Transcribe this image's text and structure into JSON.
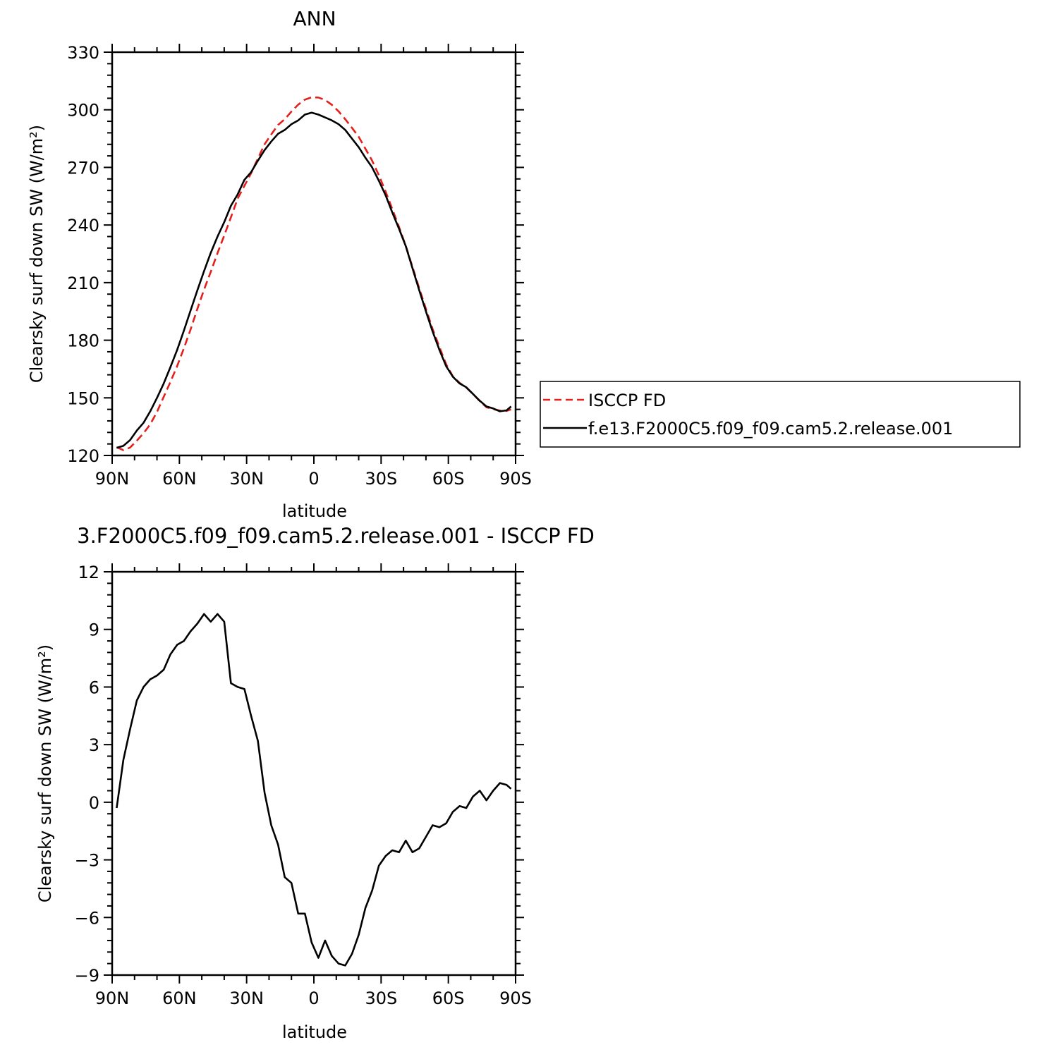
{
  "chart_data": [
    {
      "type": "line",
      "title": "ANN",
      "xlabel": "latitude",
      "ylabel": "Clearsky surf down SW (W/m²)",
      "xlim": [
        -90,
        90
      ],
      "ylim": [
        120,
        330
      ],
      "x_ticks": [
        -90,
        -60,
        -30,
        0,
        30,
        60,
        90
      ],
      "x_tick_labels": [
        "90N",
        "60N",
        "30N",
        "0",
        "30S",
        "60S",
        "90S"
      ],
      "y_ticks": [
        120,
        150,
        180,
        210,
        240,
        270,
        300,
        330
      ],
      "y_tick_labels": [
        "120",
        "150",
        "180",
        "210",
        "240",
        "270",
        "300",
        "330"
      ],
      "grid": false,
      "legend_position": "right",
      "x": [
        -88,
        -85,
        -82,
        -79,
        -76,
        -73,
        -70,
        -67,
        -64,
        -61,
        -58,
        -55,
        -52,
        -49,
        -46,
        -43,
        -40,
        -37,
        -34,
        -31,
        -28,
        -25,
        -22,
        -19,
        -16,
        -13,
        -10,
        -7,
        -4,
        -1,
        2,
        5,
        8,
        11,
        14,
        17,
        20,
        23,
        26,
        29,
        32,
        35,
        38,
        41,
        44,
        47,
        50,
        53,
        56,
        59,
        62,
        65,
        68,
        71,
        74,
        77,
        80,
        83,
        86,
        88
      ],
      "series": [
        {
          "name": "ISCCP FD",
          "color": "#e3201c",
          "dash": true,
          "values": [
            124.3,
            122.8,
            124.1,
            127.7,
            131.6,
            136.2,
            142.7,
            150.5,
            158.3,
            166.6,
            175.8,
            185.6,
            196.3,
            206.4,
            215.6,
            225.4,
            234.5,
            244.0,
            253.8,
            260.4,
            267.0,
            274.6,
            282.0,
            287.2,
            292.1,
            295.1,
            299.1,
            302.7,
            305.3,
            306.5,
            306.4,
            305.1,
            302.6,
            299.2,
            295.1,
            290.6,
            285.9,
            279.7,
            273.5,
            265.9,
            257.4,
            248.3,
            238.9,
            229.1,
            218.2,
            207.0,
            196.3,
            185.8,
            176.5,
            167.5,
            161.2,
            157.8,
            155.3,
            152.0,
            148.3,
            145.1,
            144.1,
            143.4,
            143.2,
            144.0
          ]
        },
        {
          "name": "f.e13.F2000C5.f09_f09.cam5.2.release.001",
          "color": "#000000",
          "dash": false,
          "values": [
            124.0,
            125.0,
            128.0,
            133.0,
            137.0,
            143.0,
            150.0,
            157.5,
            166.0,
            175.0,
            185.0,
            195.5,
            206.0,
            216.0,
            225.5,
            234.0,
            241.5,
            250.0,
            256.0,
            263.5,
            267.5,
            273.5,
            279.0,
            283.5,
            287.5,
            289.5,
            292.5,
            294.5,
            297.5,
            298.5,
            297.5,
            296.0,
            294.5,
            292.5,
            289.5,
            285.0,
            280.5,
            275.0,
            270.0,
            263.0,
            255.5,
            246.5,
            238.0,
            229.0,
            217.5,
            206.0,
            195.0,
            184.5,
            175.0,
            166.5,
            161.0,
            157.5,
            155.5,
            152.0,
            148.5,
            145.5,
            144.5,
            143.0,
            143.5,
            145.5
          ]
        }
      ]
    },
    {
      "type": "line",
      "title": "3.F2000C5.f09_f09.cam5.2.release.001 - ISCCP FD",
      "xlabel": "latitude",
      "ylabel": "Clearsky surf down SW (W/m²)",
      "xlim": [
        -90,
        90
      ],
      "ylim": [
        -9,
        12
      ],
      "x_ticks": [
        -90,
        -60,
        -30,
        0,
        30,
        60,
        90
      ],
      "x_tick_labels": [
        "90N",
        "60N",
        "30N",
        "0",
        "30S",
        "60S",
        "90S"
      ],
      "y_ticks": [
        -9,
        -6,
        -3,
        0,
        3,
        6,
        9,
        12
      ],
      "y_tick_labels": [
        "−9",
        "−6",
        "−3",
        "0",
        "3",
        "6",
        "9",
        "12"
      ],
      "grid": false,
      "x": [
        -88,
        -85,
        -82,
        -79,
        -76,
        -73,
        -70,
        -67,
        -64,
        -61,
        -58,
        -55,
        -52,
        -49,
        -46,
        -43,
        -40,
        -37,
        -34,
        -31,
        -28,
        -25,
        -22,
        -19,
        -16,
        -13,
        -10,
        -7,
        -4,
        -1,
        2,
        5,
        8,
        11,
        14,
        17,
        20,
        23,
        26,
        29,
        32,
        35,
        38,
        41,
        44,
        47,
        50,
        53,
        56,
        59,
        62,
        65,
        68,
        71,
        74,
        77,
        80,
        83,
        86,
        88
      ],
      "series": [
        {
          "name": "",
          "color": "#000000",
          "dash": false,
          "values": [
            -0.3,
            2.2,
            3.8,
            5.3,
            6.0,
            6.4,
            6.6,
            6.9,
            7.7,
            8.2,
            8.4,
            8.9,
            9.3,
            9.8,
            9.4,
            9.8,
            9.4,
            6.2,
            6.0,
            5.9,
            4.5,
            3.2,
            0.5,
            -1.2,
            -2.2,
            -3.9,
            -4.2,
            -5.8,
            -5.8,
            -7.3,
            -8.1,
            -7.2,
            -8.0,
            -8.4,
            -8.5,
            -7.9,
            -6.9,
            -5.5,
            -4.6,
            -3.3,
            -2.8,
            -2.5,
            -2.6,
            -2.0,
            -2.6,
            -2.4,
            -1.8,
            -1.2,
            -1.3,
            -1.1,
            -0.5,
            -0.2,
            -0.3,
            0.3,
            0.6,
            0.1,
            0.6,
            1.0,
            0.9,
            0.7
          ]
        }
      ]
    }
  ]
}
